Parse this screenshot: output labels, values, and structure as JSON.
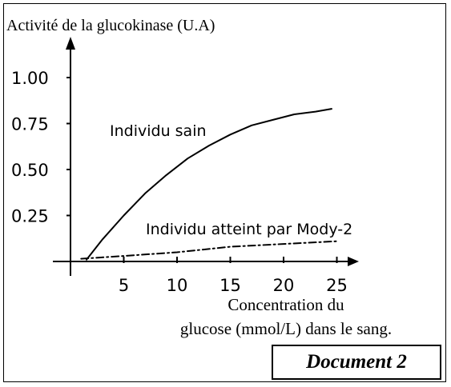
{
  "chart_data": {
    "type": "line",
    "ylabel": "Activité de la glucokinase (U.A)",
    "xlabel_lines": [
      "Concentration du",
      "glucose (mmol/L) dans le sang."
    ],
    "x_ticks": [
      5,
      10,
      15,
      20,
      25
    ],
    "y_ticks": [
      0.25,
      0.5,
      0.75,
      1.0
    ],
    "y_tick_labels": [
      "0.25",
      "0.50",
      "0.75",
      "1.00"
    ],
    "xlim": [
      0,
      27
    ],
    "ylim": [
      0,
      1.2
    ],
    "grid": false,
    "series": [
      {
        "name": "Individu sain",
        "style": "solid",
        "x": [
          1.5,
          3,
          5,
          7,
          9,
          11,
          13,
          15,
          17,
          19,
          21,
          23,
          24.5
        ],
        "y": [
          0.01,
          0.12,
          0.25,
          0.37,
          0.47,
          0.56,
          0.63,
          0.69,
          0.74,
          0.77,
          0.8,
          0.815,
          0.83
        ]
      },
      {
        "name": "Individu atteint par Mody-2",
        "style": "dashdot",
        "x": [
          1,
          5,
          10,
          15,
          20,
          25
        ],
        "y": [
          0.015,
          0.03,
          0.05,
          0.08,
          0.095,
          0.11
        ]
      }
    ]
  },
  "document_label": "Document 2",
  "colors": {
    "ink": "#000000",
    "background": "#ffffff"
  }
}
